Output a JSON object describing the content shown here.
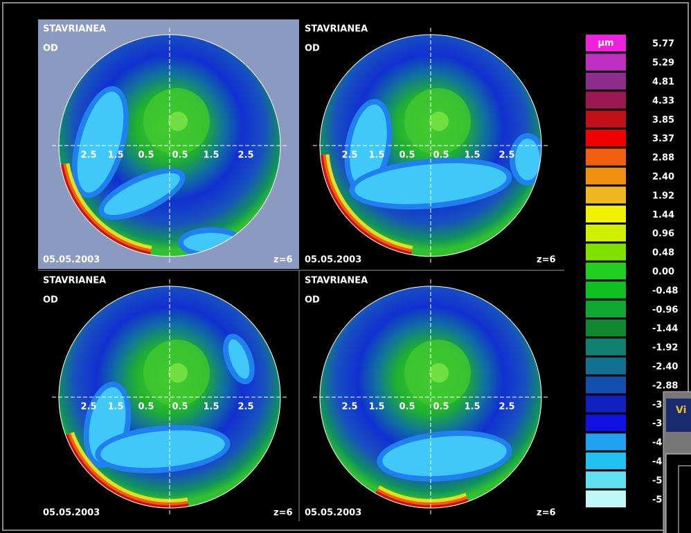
{
  "panels": [
    {
      "patient": "STAVRIANEA",
      "eye": "OD",
      "date": "05.05.2003",
      "zoom": "z=6",
      "axis_labels": [
        "2.5",
        "1.5",
        "0.5",
        "0.5",
        "1.5",
        "2.5"
      ]
    },
    {
      "patient": "STAVRIANEA",
      "eye": "OD",
      "date": "05.05.2003",
      "zoom": "z=6",
      "axis_labels": [
        "2.5",
        "1.5",
        "0.5",
        "0.5",
        "1.5",
        "2.5"
      ]
    },
    {
      "patient": "STAVRIANEA",
      "eye": "OD",
      "date": "05.05.2003",
      "zoom": "z=6",
      "axis_labels": [
        "2.5",
        "1.5",
        "0.5",
        "0.5",
        "1.5",
        "2.5"
      ]
    },
    {
      "patient": "STAVRIANEA",
      "eye": "OD",
      "date": "05.05.2003",
      "zoom": "z=6",
      "axis_labels": [
        "2.5",
        "1.5",
        "0.5",
        "0.5",
        "1.5",
        "2.5"
      ]
    }
  ],
  "scale": {
    "unit": "µm",
    "labels": [
      "5.77",
      "5.29",
      "4.81",
      "4.33",
      "3.85",
      "3.37",
      "2.88",
      "2.40",
      "1.92",
      "1.44",
      "0.96",
      "0.48",
      "0.00",
      "-0.48",
      "-0.96",
      "-1.44",
      "-1.92",
      "-2.40",
      "-2.88",
      "-3",
      "-3",
      "-4",
      "-4",
      "-5",
      "-5"
    ]
  },
  "window": {
    "title": "Vi"
  }
}
